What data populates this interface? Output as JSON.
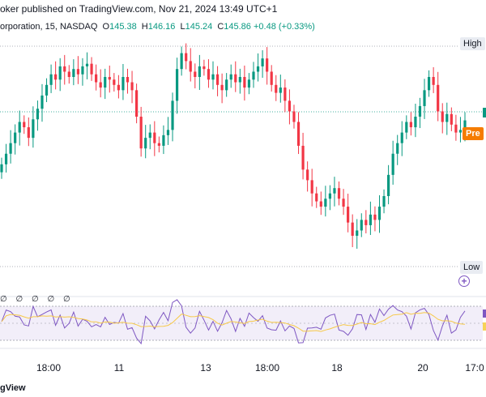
{
  "header": {
    "published": "oker published on TradingView.com, Nov 21, 2024 13:49 UTC+1",
    "symbol": "orporation, 15, NASDAQ",
    "o_label": "O",
    "o_value": "145.38",
    "h_label": "H",
    "h_value": "146.16",
    "l_label": "L",
    "l_value": "145.24",
    "c_label": "C",
    "c_value": "145.86",
    "change": "+0.48 (+0.33%)"
  },
  "price_labels": {
    "high": "High",
    "low": "Low",
    "pre": "Pre"
  },
  "rsi_markers": "∅ ∅ ∅ ∅ ∅",
  "x_axis": {
    "ticks": [
      "18:00",
      "11",
      "13",
      "18:00",
      "18",
      "20",
      "17:0"
    ]
  },
  "footer": {
    "brand_prefix": "gView"
  },
  "colors": {
    "up": "#089981",
    "down": "#f23645",
    "rsi": "#7e57c2",
    "rsi_ma": "#f7c948",
    "pre": "#f57c00"
  },
  "icons": {
    "add_indicator": "plus-circle-icon"
  },
  "chart_data": {
    "type": "candlestick",
    "ylim": [
      140.0,
      149.0
    ],
    "series": [
      {
        "name": "",
        "closes": [
          144.2,
          144.6,
          145.0,
          145.4,
          145.8,
          145.6,
          145.2,
          145.9,
          146.3,
          146.8,
          147.2,
          147.6,
          147.4,
          147.9,
          147.7,
          147.5,
          147.8,
          147.6,
          147.9,
          148.0,
          147.6,
          147.3,
          147.1,
          147.5,
          147.4,
          147.2,
          147.0,
          147.5,
          147.3,
          147.0,
          146.0,
          144.8,
          145.2,
          145.4,
          145.0,
          144.9,
          145.3,
          145.5,
          146.6,
          147.8,
          148.4,
          148.1,
          147.7,
          147.5,
          147.9,
          147.8,
          147.4,
          147.6,
          147.2,
          147.0,
          147.4,
          147.6,
          147.3,
          147.5,
          147.1,
          147.4,
          147.7,
          147.9,
          148.2,
          147.7,
          147.2,
          146.9,
          147.1,
          146.6,
          146.2,
          145.8,
          144.9,
          144.0,
          143.6,
          143.1,
          142.8,
          142.6,
          142.9,
          143.1,
          143.3,
          142.9,
          142.6,
          142.0,
          141.5,
          141.7,
          142.1,
          141.9,
          142.3,
          142.1,
          142.6,
          143.0,
          143.8,
          144.6,
          145.0,
          145.4,
          145.8,
          145.6,
          146.0,
          146.4,
          147.0,
          147.5,
          147.2,
          146.2,
          145.8,
          146.1,
          145.7,
          145.4,
          145.5,
          145.86
        ]
      }
    ]
  }
}
